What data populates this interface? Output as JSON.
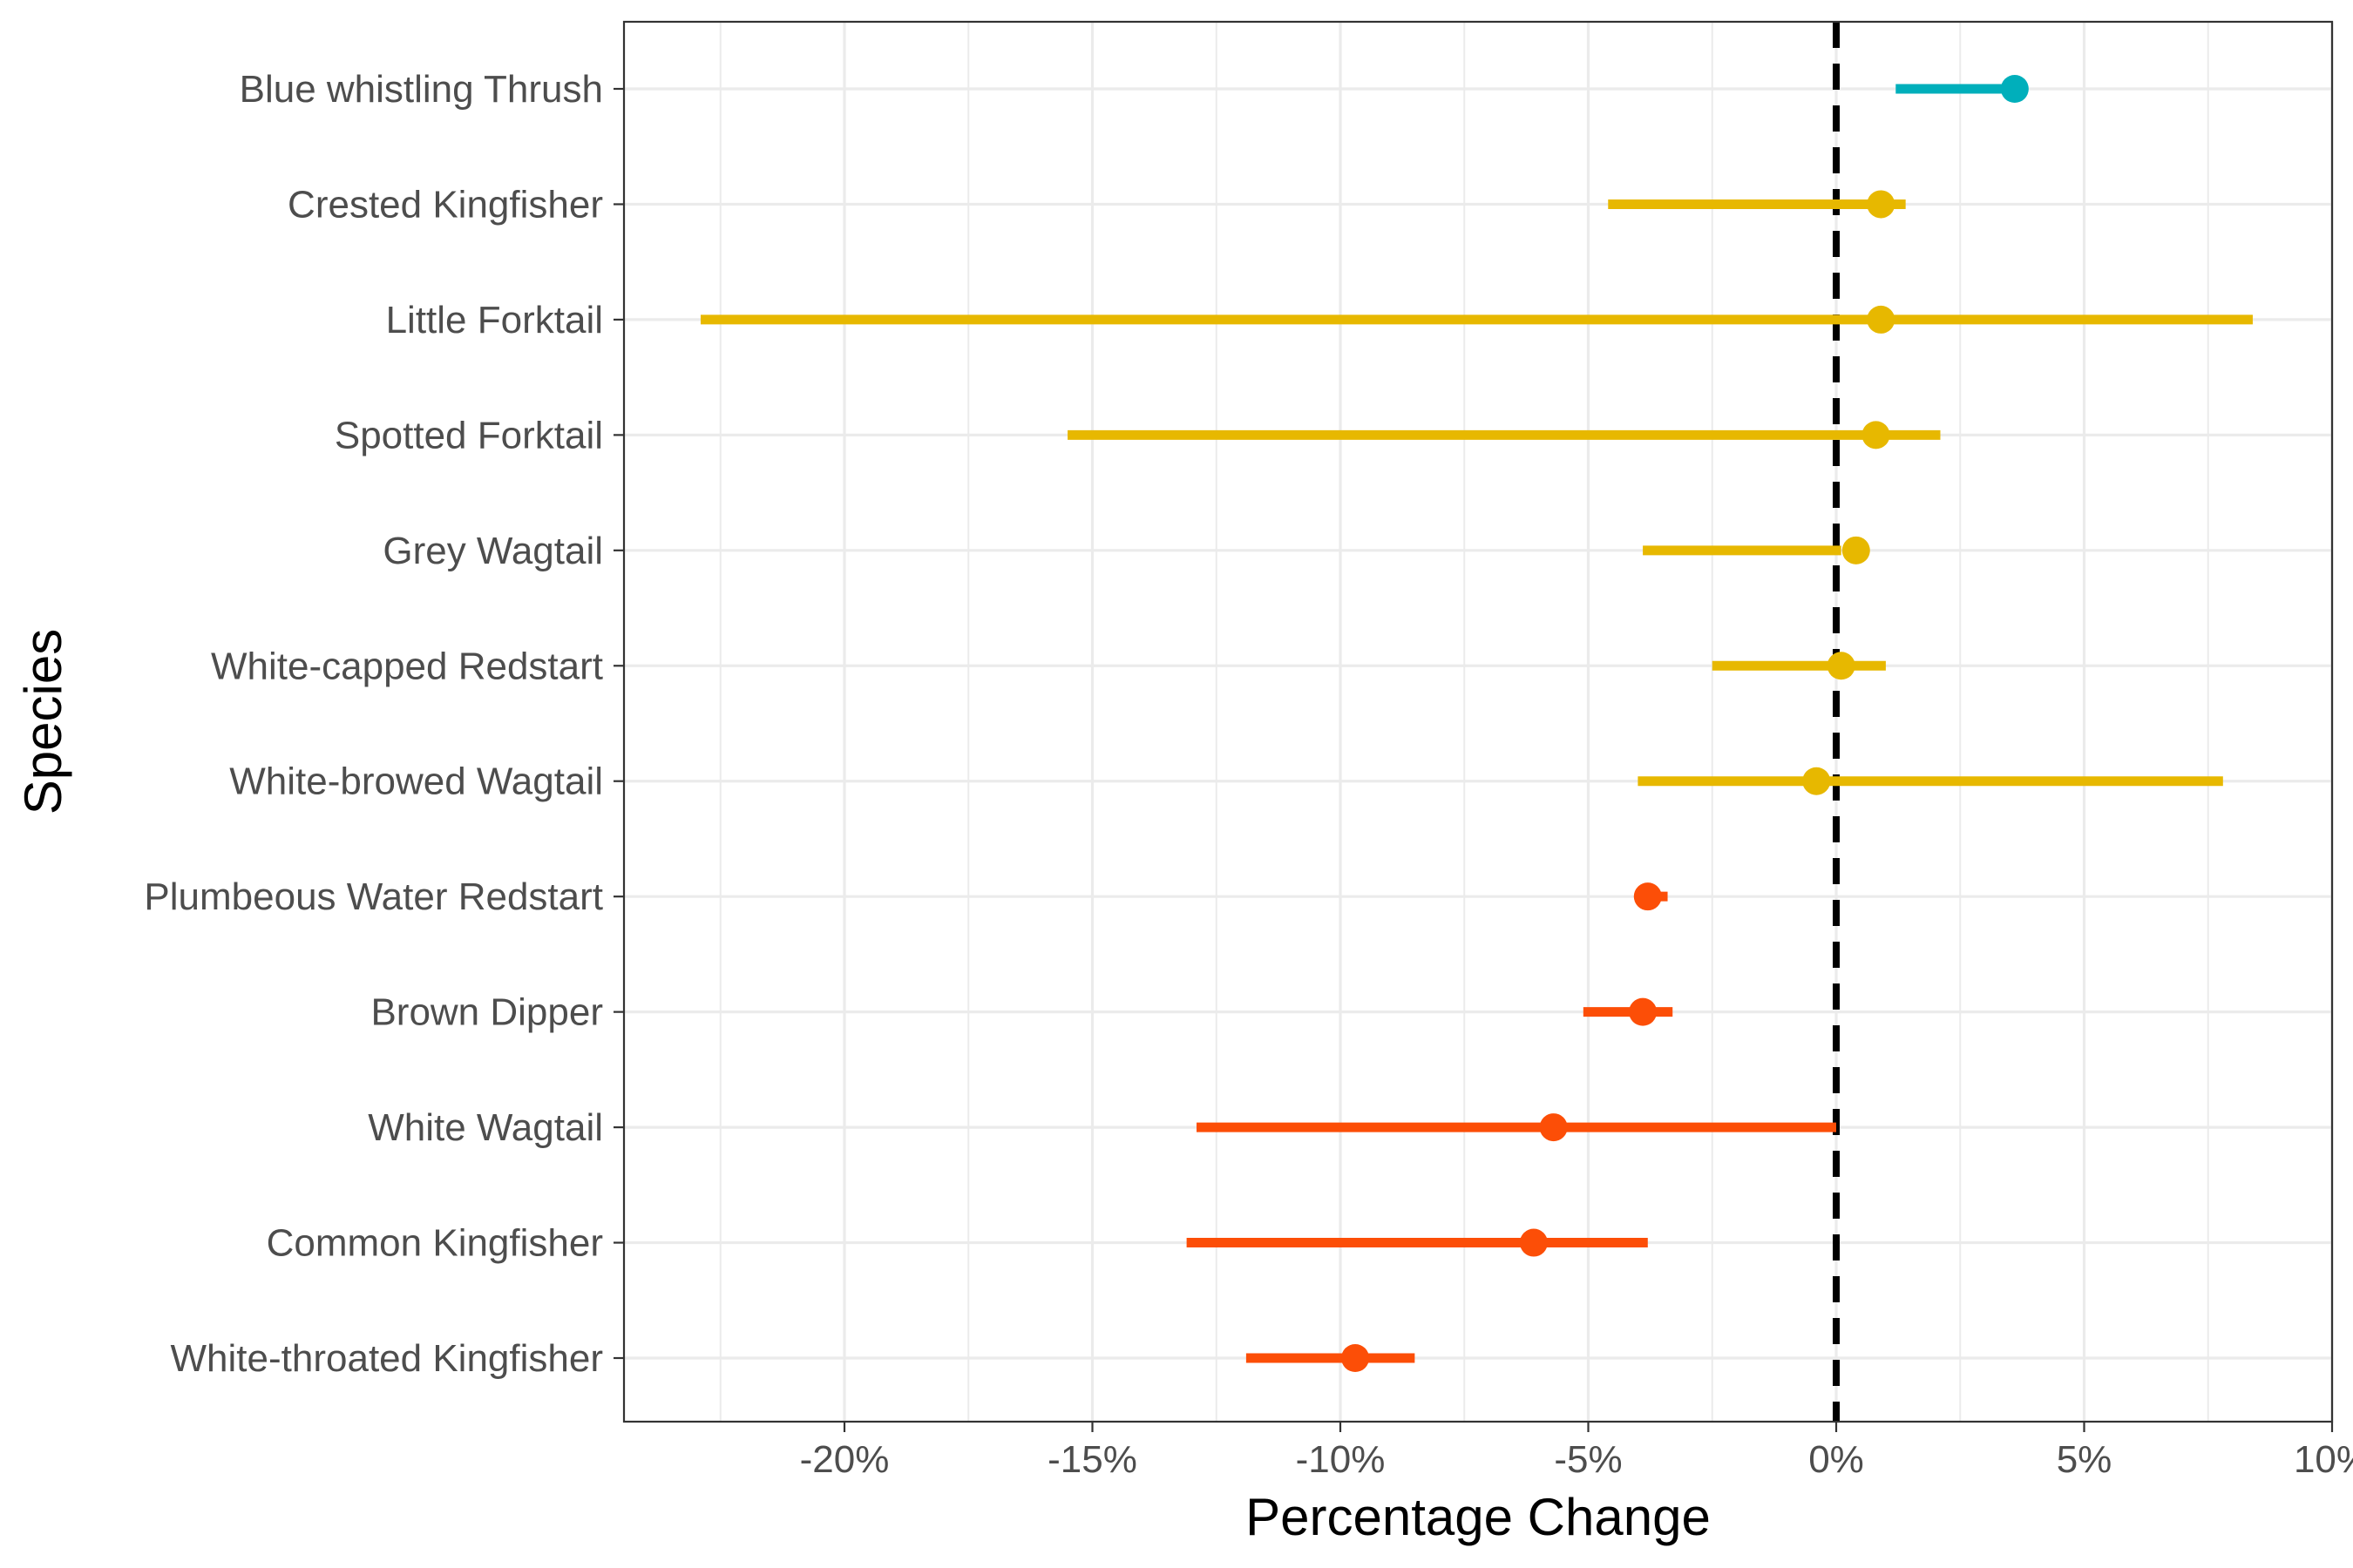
{
  "chart_data": {
    "type": "scatter",
    "subtype": "point-range",
    "title": "",
    "xlabel": "Percentage Change",
    "ylabel": "Species",
    "xlim": [
      -24.4,
      10
    ],
    "x_ticks": [
      -20,
      -15,
      -10,
      -5,
      0,
      5,
      10
    ],
    "x_tick_labels": [
      "-20%",
      "-15%",
      "-10%",
      "-5%",
      "0%",
      "5%",
      "10%"
    ],
    "grid": true,
    "legend": "none",
    "reference_line": {
      "x": 0,
      "style": "dashed",
      "color": "#000000"
    },
    "series": [
      {
        "label": "Blue whistling Thrush",
        "estimate": 3.6,
        "lower": 1.2,
        "upper": 3.6,
        "color": "#00AFBB"
      },
      {
        "label": "Crested Kingfisher",
        "estimate": 0.9,
        "lower": -4.6,
        "upper": 1.4,
        "color": "#E7B800"
      },
      {
        "label": "Little Forktail",
        "estimate": 0.9,
        "lower": -22.9,
        "upper": 8.4,
        "color": "#E7B800"
      },
      {
        "label": "Spotted Forktail",
        "estimate": 0.8,
        "lower": -15.5,
        "upper": 2.1,
        "color": "#E7B800"
      },
      {
        "label": "Grey Wagtail",
        "estimate": 0.4,
        "lower": -3.9,
        "upper": 0.1,
        "color": "#E7B800"
      },
      {
        "label": "White-capped Redstart",
        "estimate": 0.1,
        "lower": -2.5,
        "upper": 1.0,
        "color": "#E7B800"
      },
      {
        "label": "White-browed Wagtail",
        "estimate": -0.4,
        "lower": -4.0,
        "upper": 7.8,
        "color": "#E7B800"
      },
      {
        "label": "Plumbeous Water Redstart",
        "estimate": -3.8,
        "lower": -3.8,
        "upper": -3.4,
        "color": "#FC4E07"
      },
      {
        "label": "Brown Dipper",
        "estimate": -3.9,
        "lower": -5.1,
        "upper": -3.3,
        "color": "#FC4E07"
      },
      {
        "label": "White Wagtail",
        "estimate": -5.7,
        "lower": -12.9,
        "upper": 0.0,
        "color": "#FC4E07"
      },
      {
        "label": "Common Kingfisher",
        "estimate": -6.1,
        "lower": -13.1,
        "upper": -3.8,
        "color": "#FC4E07"
      },
      {
        "label": "White-throated Kingfisher",
        "estimate": -9.7,
        "lower": -11.9,
        "upper": -8.5,
        "color": "#FC4E07"
      }
    ]
  }
}
